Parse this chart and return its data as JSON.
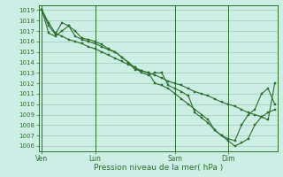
{
  "background_color": "#cceee4",
  "grid_color": "#99ccbb",
  "line_color": "#2d6e2d",
  "marker_color": "#2d6e2d",
  "xlabel": "Pression niveau de la mer( hPa )",
  "ylim": [
    1005.5,
    1019.5
  ],
  "yticks": [
    1006,
    1007,
    1008,
    1009,
    1010,
    1011,
    1012,
    1013,
    1014,
    1015,
    1016,
    1017,
    1018,
    1019
  ],
  "xtick_labels": [
    "Ven",
    "Lun",
    "Sam",
    "Dim"
  ],
  "xtick_positions": [
    0,
    8,
    20,
    28
  ],
  "total_points": 36,
  "line1": [
    1019.0,
    1017.8,
    1016.8,
    1016.5,
    1016.2,
    1016.0,
    1015.8,
    1015.5,
    1015.3,
    1015.0,
    1014.7,
    1014.4,
    1014.1,
    1013.8,
    1013.5,
    1013.2,
    1013.0,
    1012.8,
    1012.5,
    1012.2,
    1012.0,
    1011.8,
    1011.5,
    1011.2,
    1011.0,
    1010.8,
    1010.5,
    1010.2,
    1010.0,
    1009.8,
    1009.5,
    1009.2,
    1009.0,
    1008.8,
    1008.5,
    1012.0
  ],
  "line2": [
    1019.0,
    1017.5,
    1016.7,
    1017.8,
    1017.5,
    1016.5,
    1016.2,
    1016.0,
    1015.8,
    1015.5,
    1015.2,
    1015.0,
    1014.5,
    1014.0,
    1013.5,
    1013.0,
    1012.8,
    1013.0,
    1013.0,
    1011.8,
    1011.5,
    1011.2,
    1010.8,
    1009.2,
    1008.7,
    1008.2,
    1007.5,
    1007.0,
    1006.5,
    1006.0,
    1006.3,
    1006.7,
    1008.0,
    1008.8,
    1009.2,
    1009.5
  ],
  "line3": [
    1019.0,
    1016.8,
    1016.5,
    1017.0,
    1017.5,
    1017.0,
    1016.3,
    1016.2,
    1016.0,
    1015.7,
    1015.3,
    1015.0,
    1014.5,
    1014.0,
    1013.3,
    1013.2,
    1013.0,
    1012.0,
    1011.8,
    1011.5,
    1011.0,
    1010.5,
    1010.0,
    1009.5,
    1009.0,
    1008.5,
    1007.5,
    1007.0,
    1006.7,
    1006.5,
    1008.0,
    1009.0,
    1009.5,
    1011.0,
    1011.5,
    1010.0
  ]
}
